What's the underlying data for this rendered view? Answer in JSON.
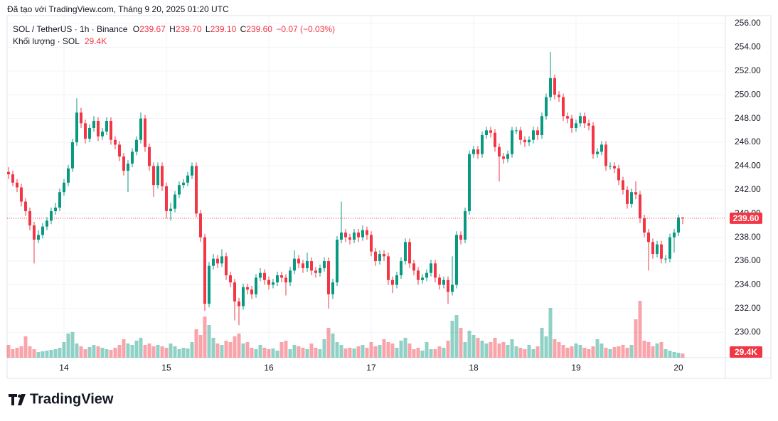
{
  "caption": "Đã tạo với TradingView.com, Tháng 9 20, 2025 01:20 UTC",
  "logo": "TradingView",
  "chart_data": {
    "type": "candlestick",
    "legend": {
      "symbol": "SOL / TetherUS · 1h · Binance",
      "o_key": "O",
      "o": "239.67",
      "h_key": "H",
      "h": "239.70",
      "l_key": "L",
      "l": "239.10",
      "c_key": "C",
      "c": "239.60",
      "change": "−0.07 (−0.03%)",
      "volume_name": "Khối lượng · SOL",
      "volume": "29.4K"
    },
    "last_price_label": "239.60",
    "last_volume_label": "29.4K",
    "up_color": "#089981",
    "down_color": "#f23645",
    "grid": true,
    "xlim": [
      -0.33,
      168
    ],
    "xticks": [
      {
        "value": 13,
        "label": "14"
      },
      {
        "value": 37,
        "label": "15"
      },
      {
        "value": 61,
        "label": "16"
      },
      {
        "value": 85,
        "label": "17"
      },
      {
        "value": 109,
        "label": "18"
      },
      {
        "value": 133,
        "label": "19"
      },
      {
        "value": 157,
        "label": "20"
      }
    ],
    "ylim": [
      227.86,
      256.66
    ],
    "yticks": [
      {
        "value": 230,
        "label": "230.00"
      },
      {
        "value": 232,
        "label": "232.00"
      },
      {
        "value": 234,
        "label": "234.00"
      },
      {
        "value": 236,
        "label": "236.00"
      },
      {
        "value": 238,
        "label": "238.00"
      },
      {
        "value": 240,
        "label": "240.00"
      },
      {
        "value": 242,
        "label": "242.00"
      },
      {
        "value": 244,
        "label": "244.00"
      },
      {
        "value": 246,
        "label": "246.00"
      },
      {
        "value": 248,
        "label": "248.00"
      },
      {
        "value": 250,
        "label": "250.00"
      },
      {
        "value": 252,
        "label": "252.00"
      },
      {
        "value": 254,
        "label": "254.00"
      },
      {
        "value": 256,
        "label": "256.00"
      }
    ],
    "volume_ylim": [
      0,
      500000
    ],
    "open": [
      243.5,
      243.3,
      242.6,
      242.2,
      241.0,
      240.2,
      239.0,
      237.8,
      238.2,
      238.9,
      239.4,
      240.2,
      240.5,
      241.8,
      242.6,
      243.8,
      246.0,
      248.5,
      247.6,
      246.3,
      247.2,
      247.8,
      246.5,
      246.9,
      247.8,
      246.2,
      245.8,
      244.8,
      243.6,
      244.2,
      245.2,
      246.2,
      248.0,
      245.6,
      244.0,
      242.4,
      244.0,
      242.3,
      240.2,
      240.4,
      241.6,
      242.4,
      242.6,
      243.2,
      244.0,
      240.0,
      238.0,
      232.4,
      235.6,
      236.2,
      235.8,
      236.4,
      234.8,
      234.2,
      232.6,
      232.2,
      233.8,
      233.6,
      233.2,
      234.6,
      235.0,
      234.4,
      234.0,
      234.2,
      234.8,
      234.6,
      234.2,
      235.2,
      236.2,
      235.8,
      235.4,
      236.0,
      235.2,
      235.0,
      235.4,
      236.0,
      233.2,
      234.2,
      237.8,
      238.4,
      238.0,
      237.8,
      238.4,
      238.0,
      238.6,
      238.2,
      236.8,
      236.0,
      236.6,
      236.4,
      234.4,
      234.0,
      234.8,
      236.0,
      237.6,
      235.8,
      235.2,
      234.4,
      234.6,
      235.0,
      235.8,
      234.6,
      234.0,
      234.4,
      233.4,
      234.0,
      238.2,
      237.8,
      240.2,
      245.0,
      245.4,
      245.0,
      246.6,
      247.0,
      246.8,
      245.6,
      244.8,
      244.6,
      245.0,
      247.0,
      247.0,
      246.2,
      246.0,
      246.2,
      247.0,
      246.6,
      248.2,
      249.8,
      251.4,
      250.0,
      249.8,
      248.2,
      248.0,
      247.2,
      247.6,
      248.2,
      247.6,
      247.4,
      245.0,
      245.2,
      245.8,
      244.0,
      244.0,
      243.8,
      242.8,
      242.0,
      240.8,
      241.8,
      241.6,
      239.6,
      238.4,
      237.6,
      236.6,
      237.4,
      236.2,
      236.2,
      238.0,
      238.4,
      239.67
    ],
    "high": [
      243.9,
      243.6,
      242.9,
      242.5,
      241.3,
      240.5,
      239.3,
      238.6,
      239.2,
      239.7,
      240.5,
      240.9,
      242.1,
      242.9,
      244.1,
      246.3,
      249.7,
      248.9,
      247.9,
      247.5,
      248.2,
      248.1,
      247.2,
      248.1,
      248.1,
      246.5,
      246.1,
      245.1,
      244.5,
      245.5,
      246.5,
      248.5,
      248.3,
      245.9,
      244.3,
      244.3,
      244.3,
      242.6,
      240.9,
      241.9,
      242.7,
      242.9,
      243.5,
      244.3,
      244.3,
      240.3,
      238.3,
      235.9,
      236.6,
      236.5,
      237.0,
      236.7,
      235.1,
      234.5,
      232.9,
      234.1,
      234.1,
      233.9,
      234.9,
      235.4,
      235.3,
      234.7,
      234.5,
      235.1,
      235.1,
      234.9,
      235.5,
      236.9,
      236.5,
      236.1,
      236.7,
      236.3,
      235.5,
      235.7,
      236.3,
      236.3,
      234.5,
      238.1,
      241.0,
      238.7,
      238.3,
      238.7,
      238.7,
      239.0,
      238.9,
      238.5,
      237.1,
      236.9,
      236.9,
      236.7,
      234.7,
      235.1,
      236.3,
      237.9,
      237.9,
      236.1,
      235.5,
      234.9,
      235.3,
      236.1,
      236.1,
      234.9,
      234.7,
      234.7,
      236.4,
      238.5,
      238.5,
      240.5,
      245.3,
      245.7,
      245.7,
      246.9,
      247.3,
      247.3,
      247.1,
      245.9,
      245.1,
      245.3,
      247.3,
      247.3,
      247.3,
      246.5,
      246.5,
      247.3,
      247.3,
      248.5,
      250.1,
      253.6,
      251.7,
      250.3,
      250.1,
      248.5,
      248.3,
      247.9,
      248.5,
      248.5,
      247.9,
      247.7,
      245.5,
      246.1,
      246.1,
      244.3,
      244.3,
      244.1,
      243.1,
      242.3,
      242.1,
      242.7,
      241.9,
      239.9,
      238.7,
      237.9,
      237.7,
      237.7,
      236.5,
      238.3,
      238.7,
      239.9,
      239.7
    ],
    "low": [
      242.9,
      242.3,
      241.8,
      240.6,
      239.8,
      238.6,
      235.8,
      237.5,
      237.9,
      238.6,
      239.1,
      239.9,
      240.2,
      241.5,
      242.3,
      243.5,
      245.7,
      247.2,
      245.9,
      246.0,
      246.9,
      246.1,
      246.2,
      246.6,
      245.8,
      245.4,
      244.4,
      243.2,
      241.8,
      243.9,
      244.9,
      245.9,
      245.2,
      243.6,
      241.4,
      242.1,
      241.9,
      239.6,
      239.4,
      240.1,
      241.3,
      242.1,
      242.3,
      242.9,
      239.7,
      237.6,
      231.8,
      232.1,
      235.3,
      235.4,
      235.5,
      234.4,
      233.8,
      231.0,
      230.6,
      231.9,
      233.2,
      232.8,
      232.9,
      234.3,
      234.0,
      233.6,
      233.7,
      233.9,
      234.2,
      233.1,
      233.9,
      234.9,
      235.4,
      235.0,
      235.1,
      234.8,
      234.6,
      234.7,
      235.1,
      232.0,
      232.8,
      233.9,
      237.5,
      237.6,
      237.4,
      237.5,
      237.6,
      237.7,
      237.8,
      236.4,
      235.6,
      235.7,
      236.0,
      234.0,
      233.3,
      233.7,
      234.5,
      235.7,
      235.4,
      234.8,
      234.0,
      234.1,
      234.3,
      234.7,
      234.2,
      233.6,
      233.7,
      232.4,
      233.1,
      233.7,
      237.4,
      237.5,
      239.9,
      244.7,
      244.6,
      244.7,
      246.3,
      246.4,
      245.2,
      242.7,
      244.2,
      244.3,
      244.7,
      246.7,
      245.8,
      245.6,
      245.7,
      245.9,
      246.2,
      246.3,
      247.9,
      249.5,
      249.6,
      249.4,
      247.8,
      247.6,
      246.8,
      246.9,
      247.3,
      247.2,
      247.0,
      244.6,
      244.7,
      244.9,
      243.6,
      243.7,
      243.4,
      242.4,
      241.6,
      240.4,
      240.5,
      241.2,
      239.2,
      238.0,
      235.2,
      236.2,
      236.3,
      235.8,
      235.8,
      235.9,
      236.7,
      238.1,
      239.1
    ],
    "close": [
      243.3,
      242.6,
      242.2,
      241.0,
      240.2,
      239.0,
      237.8,
      238.2,
      238.9,
      239.4,
      240.2,
      240.5,
      241.8,
      242.6,
      243.8,
      246.0,
      248.5,
      247.6,
      246.3,
      247.2,
      247.8,
      246.5,
      246.9,
      247.8,
      246.2,
      245.8,
      244.8,
      243.6,
      244.2,
      245.2,
      246.2,
      248.0,
      245.6,
      244.0,
      242.4,
      244.0,
      242.3,
      240.2,
      240.4,
      241.6,
      242.4,
      242.6,
      243.2,
      244.0,
      240.0,
      238.0,
      232.4,
      235.6,
      236.2,
      235.8,
      236.4,
      234.8,
      234.2,
      232.6,
      232.2,
      233.8,
      233.6,
      233.2,
      234.6,
      235.0,
      234.4,
      234.0,
      234.2,
      234.8,
      234.6,
      234.2,
      235.2,
      236.2,
      235.8,
      235.4,
      236.0,
      235.2,
      235.0,
      235.4,
      236.0,
      233.2,
      234.2,
      237.8,
      238.4,
      238.0,
      237.8,
      238.4,
      238.0,
      238.6,
      238.2,
      236.8,
      236.0,
      236.6,
      236.4,
      234.4,
      234.0,
      234.8,
      236.0,
      237.6,
      235.8,
      235.2,
      234.4,
      234.6,
      235.0,
      235.8,
      234.6,
      234.0,
      234.4,
      233.4,
      234.0,
      238.2,
      237.8,
      240.2,
      245.0,
      245.4,
      245.0,
      246.6,
      247.0,
      246.8,
      245.6,
      244.8,
      244.6,
      245.0,
      247.0,
      247.0,
      246.2,
      246.0,
      246.2,
      247.0,
      246.6,
      248.2,
      249.8,
      251.4,
      250.0,
      249.8,
      248.2,
      248.0,
      247.2,
      247.6,
      248.2,
      247.6,
      247.4,
      245.0,
      245.2,
      245.8,
      244.0,
      244.0,
      243.8,
      242.8,
      242.0,
      240.8,
      241.8,
      241.6,
      239.6,
      238.4,
      237.6,
      236.6,
      237.4,
      236.2,
      236.2,
      238.0,
      238.4,
      239.67,
      239.6
    ],
    "volume": [
      90000,
      60000,
      70000,
      80000,
      150000,
      80000,
      60000,
      40000,
      45000,
      50000,
      55000,
      60000,
      70000,
      110000,
      170000,
      180000,
      100000,
      80000,
      60000,
      75000,
      90000,
      80000,
      70000,
      60000,
      55000,
      70000,
      90000,
      130000,
      100000,
      90000,
      120000,
      140000,
      90000,
      100000,
      80000,
      90000,
      80000,
      70000,
      100000,
      80000,
      60000,
      70000,
      65000,
      110000,
      200000,
      160000,
      290000,
      230000,
      140000,
      100000,
      90000,
      120000,
      110000,
      150000,
      170000,
      100000,
      110000,
      70000,
      60000,
      90000,
      70000,
      60000,
      65000,
      50000,
      110000,
      120000,
      60000,
      90000,
      80000,
      70000,
      60000,
      100000,
      70000,
      60000,
      130000,
      210000,
      170000,
      110000,
      90000,
      65000,
      70000,
      65000,
      80000,
      90000,
      70000,
      110000,
      80000,
      90000,
      130000,
      110000,
      100000,
      70000,
      120000,
      140000,
      100000,
      60000,
      70000,
      50000,
      110000,
      60000,
      60000,
      80000,
      70000,
      120000,
      260000,
      300000,
      210000,
      110000,
      190000,
      160000,
      140000,
      120000,
      100000,
      110000,
      140000,
      100000,
      110000,
      90000,
      130000,
      80000,
      70000,
      60000,
      90000,
      60000,
      80000,
      210000,
      150000,
      350000,
      130000,
      110000,
      90000,
      70000,
      80000,
      100000,
      90000,
      70000,
      60000,
      80000,
      130000,
      100000,
      70000,
      60000,
      75000,
      80000,
      90000,
      70000,
      90000,
      270000,
      400000,
      120000,
      110000,
      80000,
      100000,
      110000,
      60000,
      50000,
      40000,
      35000,
      29400
    ]
  }
}
